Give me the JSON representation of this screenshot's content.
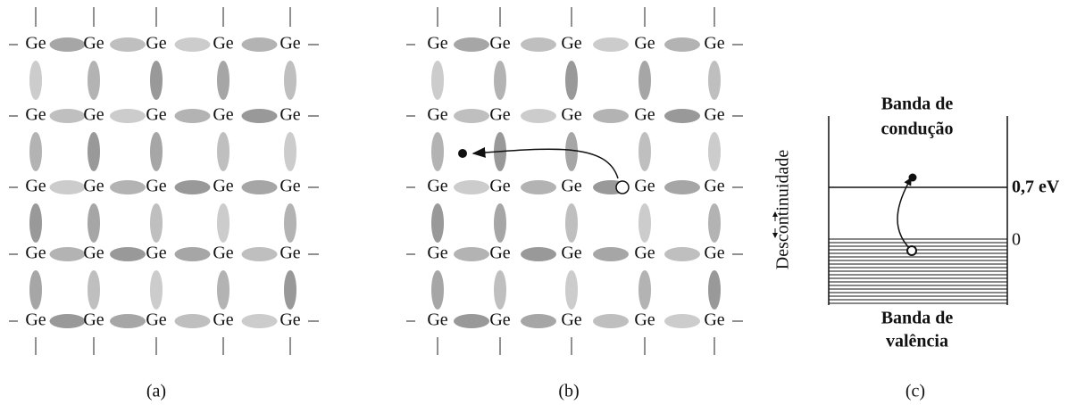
{
  "panels": [
    {
      "caption": "(a)",
      "atoms": [
        [
          "Ge",
          "Ge",
          "Ge",
          "Ge",
          "Ge"
        ],
        [
          "Ge",
          "Ge",
          "Ge",
          "Ge",
          "Ge"
        ],
        [
          "Ge",
          "Ge",
          "Ge",
          "Ge",
          "Ge"
        ],
        [
          "Ge",
          "Ge",
          "Ge",
          "Ge",
          "Ge"
        ],
        [
          "Ge",
          "Ge",
          "Ge",
          "Ge",
          "Ge"
        ]
      ]
    },
    {
      "caption": "(b)",
      "atoms": [
        [
          "Ge",
          "Ge",
          "Ge",
          "Ge",
          "Ge"
        ],
        [
          "Ge",
          "Ge",
          "Ge",
          "Ge",
          "Ge"
        ],
        [
          "Ge",
          "Ge",
          "Ge",
          "Ge",
          "Ge"
        ],
        [
          "Ge",
          "Ge",
          "Ge",
          "Ge",
          "Ge"
        ],
        [
          "Ge",
          "Ge",
          "Ge",
          "Ge",
          "Ge"
        ]
      ]
    },
    {
      "caption": "(c)",
      "conduction_band": [
        "Banda de",
        "condução"
      ],
      "gap_energy": "0,7 eV",
      "valence_top": "0",
      "valence_band": [
        "Banda de",
        "valência"
      ],
      "gap_label": "Descontinuidade"
    }
  ]
}
